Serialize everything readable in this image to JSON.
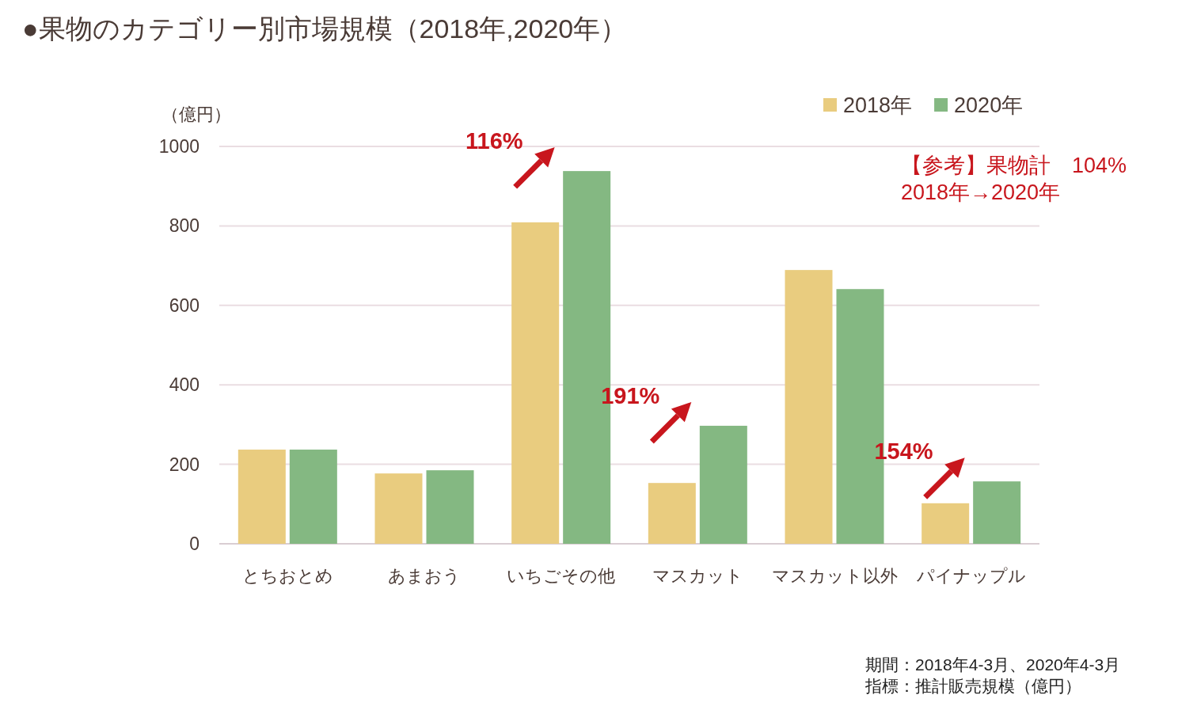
{
  "chart_data": {
    "type": "bar",
    "title": "●果物のカテゴリー別市場規模（2018年,2020年）",
    "ylabel": "（億円）",
    "categories": [
      "とちおとめ",
      "あまおう",
      "いちごその他",
      "マスカット",
      "マスカット以外",
      "パイナップル"
    ],
    "series": [
      {
        "name": "2018年",
        "color": "#e9cc7f",
        "values": [
          237,
          177,
          809,
          153,
          689,
          102
        ]
      },
      {
        "name": "2020年",
        "color": "#84b882",
        "values": [
          237,
          185,
          938,
          297,
          641,
          157
        ]
      }
    ],
    "ylim": [
      0,
      1000
    ],
    "yticks": [
      0,
      200,
      400,
      600,
      800,
      1000
    ],
    "grid": "y",
    "legend": "top right",
    "annotations": [
      {
        "text": "116%",
        "x": "いちごその他",
        "y": 938
      },
      {
        "text": "191%",
        "x": "マスカット",
        "y": 297
      },
      {
        "text": "154%",
        "x": "パイナップル",
        "y": 157
      },
      "【参考】果物計　104%",
      "2018年→2020年",
      "期間：2018年4-3月、2020年4-3月",
      "指標：推計販売規模（億円）"
    ]
  }
}
